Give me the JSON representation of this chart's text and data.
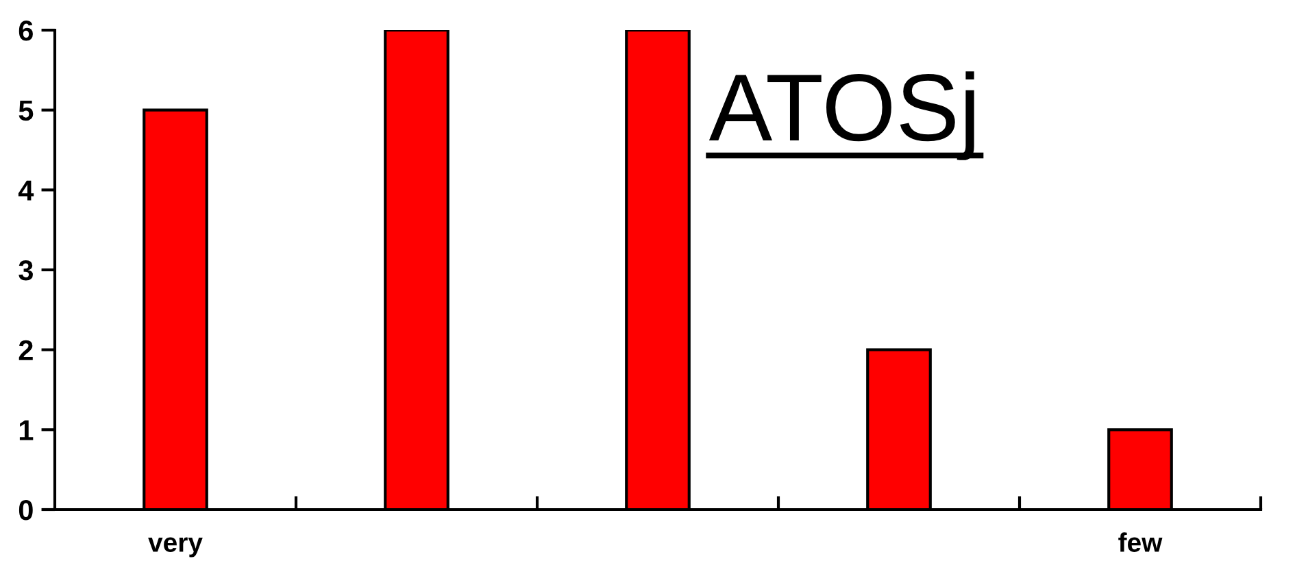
{
  "chart_data": {
    "type": "bar",
    "title": "ATOSj",
    "categories": [
      "very",
      null,
      null,
      null,
      "few"
    ],
    "values": [
      5,
      6,
      6,
      2,
      1
    ],
    "color": "#ff0000",
    "ylim": [
      0,
      6
    ],
    "yticks": [
      0,
      1,
      2,
      3,
      4,
      5,
      6
    ]
  }
}
